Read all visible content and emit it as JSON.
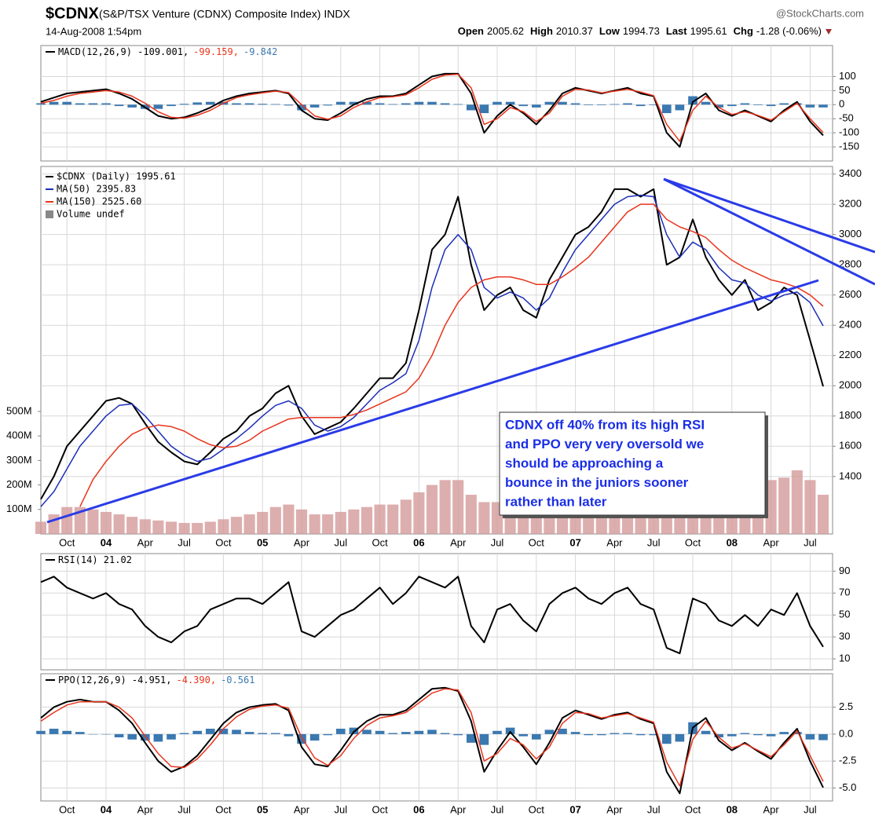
{
  "header": {
    "symbol": "$CDNX",
    "name": "(S&P/TSX Venture (CDNX) Composite Index) INDX",
    "source": "@StockCharts.com",
    "date": "14-Aug-2008 1:54pm",
    "quote": [
      {
        "label": "Open",
        "value": 2005.62
      },
      {
        "label": "High",
        "value": 2010.37
      },
      {
        "label": "Low",
        "value": 1994.73
      },
      {
        "label": "Last",
        "value": 1995.61
      },
      {
        "label": "Chg",
        "value": "-1.28 (-0.06%)"
      }
    ]
  },
  "annotation": {
    "lines": [
      "CDNX off 40% from its high RSI",
      "and PPO very very oversold we",
      "should be approaching a",
      "bounce in the juniors sooner",
      "rather than later"
    ]
  },
  "chart_data": [
    {
      "type": "line",
      "legend": "top-left",
      "legend_layout": "inline",
      "ylim": [
        -200,
        210
      ],
      "yticks": [
        100,
        50,
        0,
        -50,
        -100,
        -150
      ],
      "grid": true,
      "series": [
        {
          "name": "MACD(12,26,9) -109.001,",
          "color": "#000000",
          "values": [
            10,
            25,
            40,
            45,
            50,
            55,
            40,
            20,
            -10,
            -40,
            -50,
            -45,
            -30,
            -10,
            15,
            30,
            40,
            45,
            50,
            40,
            -20,
            -50,
            -55,
            -30,
            0,
            20,
            30,
            30,
            40,
            70,
            100,
            110,
            110,
            40,
            -100,
            -40,
            0,
            -30,
            -70,
            -20,
            40,
            60,
            50,
            40,
            50,
            60,
            40,
            30,
            -100,
            -150,
            10,
            40,
            -20,
            -40,
            -20,
            -40,
            -60,
            -20,
            10,
            -60,
            -109.001
          ]
        },
        {
          "name": "-99.159,",
          "color": "#e8341c",
          "values": [
            5,
            15,
            30,
            40,
            45,
            50,
            45,
            30,
            5,
            -25,
            -45,
            -48,
            -38,
            -20,
            5,
            25,
            35,
            42,
            48,
            43,
            0,
            -40,
            -52,
            -40,
            -10,
            10,
            25,
            28,
            35,
            60,
            90,
            105,
            108,
            60,
            -70,
            -50,
            -10,
            -25,
            -60,
            -30,
            30,
            55,
            52,
            42,
            48,
            55,
            45,
            32,
            -70,
            -130,
            -20,
            30,
            -10,
            -35,
            -25,
            -38,
            -55,
            -25,
            5,
            -50,
            -99.159
          ]
        },
        {
          "name": "-9.842",
          "color": "#3a78b0",
          "type": "bar",
          "values": [
            5,
            10,
            10,
            5,
            5,
            5,
            -5,
            -10,
            -15,
            -15,
            -5,
            3,
            8,
            10,
            10,
            5,
            5,
            3,
            2,
            -3,
            -20,
            -10,
            -3,
            10,
            10,
            10,
            5,
            2,
            5,
            10,
            10,
            5,
            2,
            -20,
            -30,
            10,
            10,
            -5,
            -10,
            10,
            10,
            5,
            -2,
            -2,
            2,
            5,
            -5,
            -2,
            -30,
            -20,
            30,
            10,
            -10,
            -5,
            5,
            -2,
            -5,
            5,
            5,
            -10,
            -9.842
          ]
        }
      ]
    },
    {
      "type": "line",
      "legend": "top-left",
      "legend_layout": "stacked",
      "ylim": [
        1020,
        3450
      ],
      "yticks": [
        3400,
        3200,
        3000,
        2800,
        2600,
        2400,
        2200,
        2000,
        1800,
        1600,
        1400
      ],
      "grid": true,
      "y2lim": [
        0,
        1500
      ],
      "y2ticks": [
        {
          "value": 500,
          "label": "500M"
        },
        {
          "value": 400,
          "label": "400M"
        },
        {
          "value": 300,
          "label": "300M"
        },
        {
          "value": 200,
          "label": "200M"
        },
        {
          "value": 100,
          "label": "100M"
        }
      ],
      "categories": [
        null,
        null,
        "Oct",
        null,
        null,
        "04",
        null,
        null,
        "Apr",
        null,
        null,
        "Jul",
        null,
        null,
        "Oct",
        null,
        null,
        "05",
        null,
        null,
        "Apr",
        null,
        null,
        "Jul",
        null,
        null,
        "Oct",
        null,
        null,
        "06",
        null,
        null,
        "Apr",
        null,
        null,
        "Jul",
        null,
        null,
        "Oct",
        null,
        null,
        "07",
        null,
        null,
        "Apr",
        null,
        null,
        "Jul",
        null,
        null,
        "Oct",
        null,
        null,
        "08",
        null,
        null,
        "Apr",
        null,
        null,
        "Jul",
        null
      ],
      "series": [
        {
          "name": "$CDNX (Daily) 1995.61",
          "color": "#000000",
          "values": [
            1250,
            1400,
            1600,
            1700,
            1800,
            1900,
            1920,
            1880,
            1750,
            1630,
            1560,
            1500,
            1480,
            1560,
            1650,
            1700,
            1800,
            1850,
            1950,
            2000,
            1800,
            1680,
            1720,
            1760,
            1850,
            1950,
            2050,
            2050,
            2150,
            2500,
            2900,
            3000,
            3250,
            2800,
            2500,
            2600,
            2650,
            2500,
            2450,
            2700,
            2850,
            3000,
            3050,
            3150,
            3300,
            3300,
            3250,
            3300,
            2800,
            2850,
            3100,
            2850,
            2700,
            2600,
            2700,
            2500,
            2550,
            2650,
            2600,
            2300,
            1995.61
          ]
        },
        {
          "name": "MA(50) 2395.83",
          "color": "#1c2fb8",
          "values": [
            1200,
            1300,
            1450,
            1600,
            1700,
            1800,
            1870,
            1880,
            1800,
            1700,
            1600,
            1540,
            1500,
            1520,
            1580,
            1650,
            1720,
            1800,
            1870,
            1900,
            1850,
            1740,
            1700,
            1730,
            1790,
            1880,
            1970,
            2020,
            2080,
            2300,
            2650,
            2900,
            3000,
            2900,
            2650,
            2580,
            2620,
            2580,
            2500,
            2580,
            2750,
            2900,
            3000,
            3100,
            3200,
            3250,
            3260,
            3250,
            3000,
            2850,
            2950,
            2900,
            2780,
            2700,
            2680,
            2600,
            2560,
            2600,
            2620,
            2550,
            2395.83
          ]
        },
        {
          "name": "MA(150) 2525.60",
          "color": "#e8341c",
          "values": [
            null,
            null,
            null,
            1200,
            1380,
            1500,
            1600,
            1680,
            1720,
            1740,
            1730,
            1700,
            1650,
            1610,
            1590,
            1600,
            1640,
            1700,
            1740,
            1780,
            1790,
            1790,
            1790,
            1790,
            1810,
            1840,
            1880,
            1920,
            1960,
            2050,
            2200,
            2400,
            2550,
            2650,
            2700,
            2720,
            2720,
            2700,
            2670,
            2670,
            2720,
            2780,
            2850,
            2950,
            3050,
            3150,
            3200,
            3200,
            3100,
            3050,
            3020,
            2980,
            2900,
            2830,
            2780,
            2740,
            2700,
            2680,
            2650,
            2600,
            2525.6
          ]
        },
        {
          "name": "Volume undef",
          "color": "#d49a9a",
          "type": "bar",
          "axis": "y2",
          "values": [
            50,
            80,
            110,
            110,
            100,
            90,
            80,
            70,
            60,
            55,
            50,
            45,
            45,
            50,
            60,
            70,
            80,
            90,
            110,
            120,
            100,
            80,
            80,
            90,
            100,
            110,
            120,
            120,
            140,
            170,
            200,
            220,
            220,
            160,
            130,
            130,
            130,
            120,
            120,
            140,
            160,
            170,
            180,
            190,
            200,
            200,
            190,
            200,
            220,
            180,
            170,
            170,
            170,
            180,
            200,
            230,
            220,
            230,
            260,
            220,
            160
          ]
        }
      ]
    },
    {
      "type": "line",
      "legend": "top-left",
      "legend_layout": "inline",
      "ylim": [
        0,
        106
      ],
      "yticks": [
        90,
        70,
        50,
        30,
        10
      ],
      "grid": true,
      "series": [
        {
          "name": "RSI(14) 21.02",
          "color": "#000000",
          "values": [
            80,
            85,
            75,
            70,
            65,
            70,
            60,
            55,
            40,
            30,
            25,
            35,
            40,
            55,
            60,
            65,
            65,
            60,
            70,
            80,
            35,
            30,
            40,
            50,
            55,
            65,
            75,
            60,
            70,
            85,
            80,
            75,
            85,
            40,
            25,
            55,
            60,
            45,
            35,
            60,
            70,
            75,
            65,
            60,
            70,
            75,
            60,
            55,
            20,
            15,
            65,
            60,
            45,
            40,
            50,
            40,
            55,
            50,
            70,
            40,
            21.02
          ]
        }
      ]
    },
    {
      "type": "line",
      "legend": "top-left",
      "legend_layout": "inline",
      "ylim": [
        -6.2,
        5.6
      ],
      "yticks": [
        2.5,
        {
          "value": 0,
          "label": "0.0"
        },
        -2.5,
        {
          "value": -5,
          "label": "-5.0"
        }
      ],
      "grid": true,
      "categories": [
        null,
        null,
        "Oct",
        null,
        null,
        "04",
        null,
        null,
        "Apr",
        null,
        null,
        "Jul",
        null,
        null,
        "Oct",
        null,
        null,
        "05",
        null,
        null,
        "Apr",
        null,
        null,
        "Jul",
        null,
        null,
        "Oct",
        null,
        null,
        "06",
        null,
        null,
        "Apr",
        null,
        null,
        "Jul",
        null,
        null,
        "Oct",
        null,
        null,
        "07",
        null,
        null,
        "Apr",
        null,
        null,
        "Jul",
        null,
        null,
        "Oct",
        null,
        null,
        "08",
        null,
        null,
        "Apr",
        null,
        null,
        "Jul",
        null
      ],
      "series": [
        {
          "name": "PPO(12,26,9) -4.951,",
          "color": "#000000",
          "values": [
            1.5,
            2.5,
            3.0,
            3.2,
            3.0,
            3.0,
            2.2,
            1.0,
            -0.8,
            -2.5,
            -3.5,
            -3.0,
            -2.0,
            -0.5,
            1.0,
            2.0,
            2.5,
            2.7,
            2.8,
            2.2,
            -1.2,
            -2.8,
            -3.0,
            -1.5,
            0.2,
            1.2,
            1.8,
            1.8,
            2.2,
            3.2,
            4.2,
            4.3,
            4.0,
            1.2,
            -3.5,
            -1.5,
            0.2,
            -1.2,
            -2.8,
            -0.8,
            1.5,
            2.2,
            1.8,
            1.4,
            1.8,
            2.0,
            1.4,
            1.0,
            -3.5,
            -5.5,
            0.6,
            1.5,
            -0.6,
            -1.5,
            -0.8,
            -1.6,
            -2.3,
            -0.8,
            0.5,
            -2.5,
            -4.951
          ]
        },
        {
          "name": "-4.390,",
          "color": "#e8341c",
          "values": [
            1.2,
            2.0,
            2.7,
            3.0,
            3.0,
            3.0,
            2.5,
            1.5,
            -0.2,
            -1.8,
            -3.0,
            -3.1,
            -2.3,
            -1.0,
            0.5,
            1.6,
            2.3,
            2.6,
            2.7,
            2.4,
            -0.3,
            -2.2,
            -2.9,
            -2.0,
            -0.4,
            0.8,
            1.5,
            1.7,
            2.0,
            2.9,
            3.8,
            4.2,
            4.1,
            2.0,
            -2.5,
            -1.8,
            -0.4,
            -1.0,
            -2.3,
            -1.2,
            1.0,
            2.0,
            1.9,
            1.5,
            1.7,
            1.9,
            1.5,
            1.1,
            -2.6,
            -4.8,
            -0.5,
            1.2,
            -0.3,
            -1.3,
            -0.9,
            -1.5,
            -2.1,
            -1.0,
            0.3,
            -2.0,
            -4.39
          ]
        },
        {
          "name": "-0.561",
          "color": "#3a78b0",
          "type": "bar",
          "values": [
            0.3,
            0.5,
            0.3,
            0.2,
            0,
            0,
            -0.3,
            -0.5,
            -0.6,
            -0.7,
            -0.5,
            0.1,
            0.3,
            0.5,
            0.5,
            0.4,
            0.2,
            0.1,
            0.1,
            -0.2,
            -0.9,
            -0.6,
            -0.1,
            0.5,
            0.6,
            0.4,
            0.3,
            0.1,
            0.2,
            0.3,
            0.4,
            0.1,
            -0.1,
            -0.8,
            -1.0,
            0.3,
            0.6,
            -0.2,
            -0.5,
            0.4,
            0.5,
            0.2,
            -0.1,
            -0.1,
            0.1,
            0.1,
            -0.1,
            -0.1,
            -0.9,
            -0.7,
            1.1,
            0.3,
            -0.3,
            -0.2,
            0.1,
            -0.1,
            -0.2,
            0.2,
            0.2,
            -0.5,
            -0.561
          ]
        }
      ]
    }
  ]
}
